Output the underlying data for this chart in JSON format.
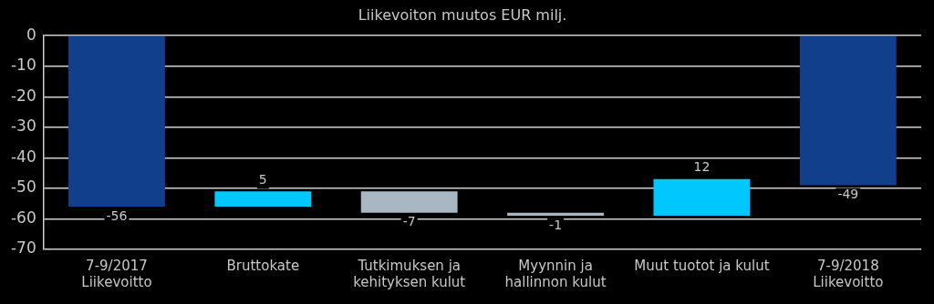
{
  "chart_data": {
    "type": "bar",
    "title": "Liikevoiton muutos EUR milj.",
    "categories": [
      "7-9/2017\nLiikevoitto",
      "Bruttokate",
      "Tutkimuksen ja\nkehityksen kulut",
      "Myynnin ja\nhallinnon kulut",
      "Muut tuotot ja kulut",
      "7-9/2018\nLiikevoitto"
    ],
    "values": [
      -56,
      5,
      -7,
      -1,
      12,
      -49
    ],
    "base": [
      0,
      -56,
      -51,
      -58,
      -59,
      0
    ],
    "colors": [
      "#123f8c",
      "#00c8ff",
      "#a9b7c2",
      "#a9b7c2",
      "#00c8ff",
      "#123f8c"
    ],
    "ylim": [
      -70,
      0
    ],
    "yticks": [
      0,
      -10,
      -20,
      -30,
      -40,
      -50,
      -60,
      -70
    ],
    "grid": "y",
    "legend": false,
    "data_labels": true
  }
}
